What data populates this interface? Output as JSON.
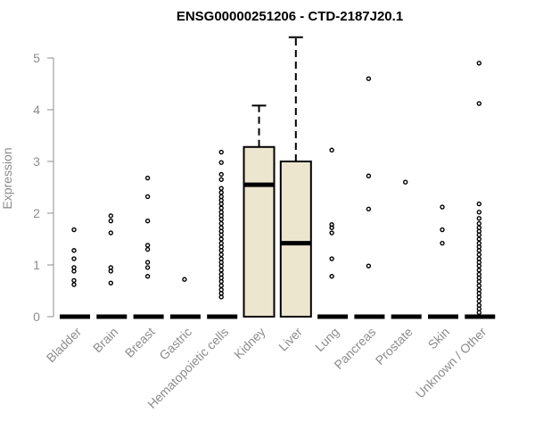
{
  "chart_data": {
    "type": "box",
    "title": "ENSG00000251206 - CTD-2187J20.1",
    "ylabel": "Expression",
    "xlabel": "",
    "ylim": [
      0,
      5.5
    ],
    "yticks": [
      0,
      1,
      2,
      3,
      4,
      5
    ],
    "grid": false,
    "colors": {
      "box_fill": "#ede6cf",
      "stroke": "#000000",
      "axis_text": "#8c8c8c"
    },
    "categories": [
      "Bladder",
      "Brain",
      "Breast",
      "Gastric",
      "Hematopoietic cells",
      "Kidney",
      "Liver",
      "Lung",
      "Pancreas",
      "Prostate",
      "Skin",
      "Unknown / Other"
    ],
    "boxes": [
      {
        "category": "Bladder",
        "q1": 0,
        "median": 0,
        "q3": 0,
        "whisker_low": 0,
        "whisker_high": 0,
        "outliers": [
          0.62,
          0.7,
          0.88,
          0.95,
          1.12,
          1.28,
          1.68
        ]
      },
      {
        "category": "Brain",
        "q1": 0,
        "median": 0,
        "q3": 0,
        "whisker_low": 0,
        "whisker_high": 0,
        "outliers": [
          0.65,
          0.88,
          0.95,
          1.62,
          1.85,
          1.95
        ]
      },
      {
        "category": "Breast",
        "q1": 0,
        "median": 0,
        "q3": 0,
        "whisker_low": 0,
        "whisker_high": 0,
        "outliers": [
          0.78,
          0.95,
          1.05,
          1.3,
          1.38,
          1.85,
          2.32,
          2.68
        ]
      },
      {
        "category": "Gastric",
        "q1": 0,
        "median": 0,
        "q3": 0,
        "whisker_low": 0,
        "whisker_high": 0,
        "outliers": [
          0.72
        ]
      },
      {
        "category": "Hematopoietic cells",
        "q1": 0,
        "median": 0,
        "q3": 0,
        "whisker_low": 0,
        "whisker_high": 0,
        "outliers": [
          0.38,
          0.45,
          0.52,
          0.6,
          0.68,
          0.75,
          0.82,
          0.9,
          0.98,
          1.05,
          1.12,
          1.2,
          1.28,
          1.35,
          1.42,
          1.5,
          1.58,
          1.65,
          1.72,
          1.8,
          1.88,
          1.95,
          2.02,
          2.1,
          2.18,
          2.25,
          2.32,
          2.4,
          2.48,
          2.65,
          2.75,
          2.98,
          3.18
        ]
      },
      {
        "category": "Kidney",
        "q1": 0,
        "median": 2.55,
        "q3": 3.28,
        "whisker_low": 0,
        "whisker_high": 4.08,
        "outliers": []
      },
      {
        "category": "Liver",
        "q1": 0,
        "median": 1.42,
        "q3": 3.0,
        "whisker_low": 0,
        "whisker_high": 5.4,
        "outliers": []
      },
      {
        "category": "Lung",
        "q1": 0,
        "median": 0,
        "q3": 0,
        "whisker_low": 0,
        "whisker_high": 0,
        "outliers": [
          0.78,
          1.12,
          1.62,
          1.72,
          1.78,
          3.22
        ]
      },
      {
        "category": "Pancreas",
        "q1": 0,
        "median": 0,
        "q3": 0,
        "whisker_low": 0,
        "whisker_high": 0,
        "outliers": [
          0.98,
          2.08,
          2.72,
          4.6
        ]
      },
      {
        "category": "Prostate",
        "q1": 0,
        "median": 0,
        "q3": 0,
        "whisker_low": 0,
        "whisker_high": 0,
        "outliers": [
          2.6
        ]
      },
      {
        "category": "Skin",
        "q1": 0,
        "median": 0,
        "q3": 0,
        "whisker_low": 0,
        "whisker_high": 0,
        "outliers": [
          1.42,
          1.68,
          2.12
        ]
      },
      {
        "category": "Unknown / Other",
        "q1": 0,
        "median": 0,
        "q3": 0,
        "whisker_low": 0,
        "whisker_high": 0,
        "outliers": [
          0.08,
          0.15,
          0.22,
          0.3,
          0.38,
          0.45,
          0.52,
          0.6,
          0.68,
          0.75,
          0.82,
          0.9,
          0.98,
          1.05,
          1.12,
          1.2,
          1.28,
          1.35,
          1.42,
          1.5,
          1.58,
          1.65,
          1.72,
          1.8,
          1.9,
          2.02,
          2.18,
          4.12,
          4.9
        ]
      }
    ]
  }
}
